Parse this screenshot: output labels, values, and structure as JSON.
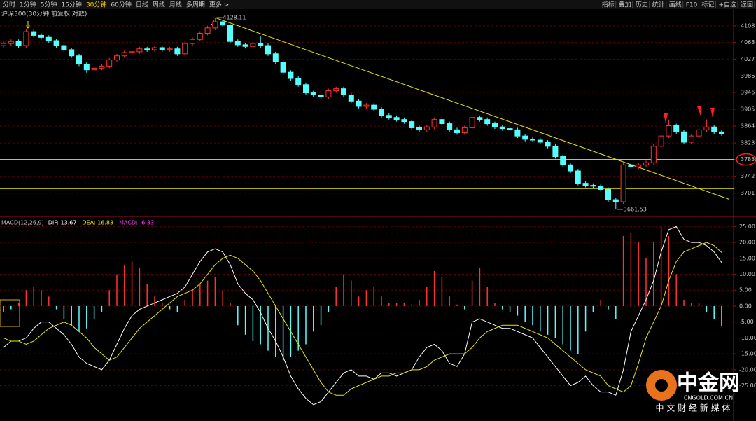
{
  "toolbar": {
    "periods": [
      "分时",
      "1分钟",
      "5分钟",
      "15分钟",
      "30分钟",
      "60分钟",
      "日线",
      "周线",
      "月线",
      "多周期",
      "更多 >"
    ],
    "active_period_index": 4,
    "tools": [
      "指标",
      "叠加",
      "历史",
      "统计",
      "画线",
      "F10",
      "标记",
      "+自选",
      "返回"
    ]
  },
  "watermark": {
    "brand": "中金网",
    "site": "CNGOLD.COM.CN",
    "slogan": "中 文 财 经 新 媒 体"
  },
  "chart_data": [
    {
      "type": "candlestick",
      "title": "沪深300(30分钟 前复权 对数)",
      "up_color": "#ff3232",
      "down_color": "#54ffff",
      "open": [
        4060,
        4065,
        4070,
        4060,
        4094,
        4085,
        4080,
        4072,
        4060,
        4050,
        4035,
        4015,
        4001,
        4005,
        4010,
        4025,
        4035,
        4043,
        4045,
        4052,
        4050,
        4055,
        4050,
        4052,
        4040,
        4065,
        4075,
        4090,
        4103,
        4118,
        4110,
        4070,
        4062,
        4058,
        4065,
        4060,
        4040,
        4020,
        3995,
        3980,
        3965,
        3945,
        3940,
        3935,
        3950,
        3955,
        3940,
        3925,
        3912,
        3915,
        3905,
        3890,
        3885,
        3880,
        3875,
        3860,
        3855,
        3862,
        3880,
        3870,
        3855,
        3848,
        3860,
        3885,
        3880,
        3870,
        3862,
        3858,
        3855,
        3840,
        3832,
        3830,
        3825,
        3815,
        3790,
        3770,
        3755,
        3725,
        3720,
        3718,
        3710,
        3685,
        3680,
        3770,
        3765,
        3770,
        3775,
        3815,
        3840,
        3865,
        3850,
        3825,
        3840,
        3855,
        3862,
        3850
      ],
      "close": [
        4065,
        4070,
        4060,
        4094,
        4085,
        4080,
        4072,
        4060,
        4050,
        4035,
        4015,
        4001,
        4005,
        4010,
        4025,
        4035,
        4043,
        4045,
        4052,
        4050,
        4055,
        4050,
        4052,
        4040,
        4065,
        4075,
        4090,
        4103,
        4118,
        4110,
        4070,
        4062,
        4058,
        4065,
        4060,
        4040,
        4020,
        3995,
        3980,
        3965,
        3945,
        3940,
        3935,
        3950,
        3955,
        3940,
        3925,
        3912,
        3915,
        3905,
        3890,
        3885,
        3880,
        3875,
        3860,
        3855,
        3862,
        3880,
        3870,
        3855,
        3848,
        3860,
        3885,
        3880,
        3870,
        3862,
        3858,
        3855,
        3840,
        3832,
        3830,
        3825,
        3815,
        3790,
        3770,
        3755,
        3725,
        3720,
        3718,
        3710,
        3685,
        3680,
        3770,
        3765,
        3770,
        3775,
        3815,
        3840,
        3865,
        3850,
        3825,
        3840,
        3855,
        3862,
        3850,
        3845
      ],
      "high": [
        4070,
        4075,
        4075,
        4100,
        4099,
        4090,
        4085,
        4077,
        4065,
        4055,
        4040,
        4020,
        4010,
        4015,
        4030,
        4040,
        4048,
        4050,
        4057,
        4057,
        4060,
        4060,
        4057,
        4057,
        4070,
        4080,
        4095,
        4108,
        4128.11,
        4123,
        4112,
        4075,
        4067,
        4070,
        4082,
        4065,
        4045,
        4025,
        4000,
        3985,
        3970,
        3950,
        3945,
        3955,
        3960,
        3960,
        3945,
        3930,
        3920,
        3920,
        3910,
        3895,
        3890,
        3885,
        3880,
        3865,
        3867,
        3885,
        3885,
        3875,
        3860,
        3865,
        3895,
        3890,
        3885,
        3875,
        3867,
        3863,
        3860,
        3845,
        3837,
        3835,
        3830,
        3820,
        3795,
        3775,
        3760,
        3730,
        3725,
        3723,
        3715,
        3690,
        3775,
        3775,
        3775,
        3780,
        3820,
        3845,
        3880,
        3870,
        3855,
        3845,
        3860,
        3880,
        3867,
        3855
      ],
      "low": [
        4055,
        4060,
        4055,
        4055,
        4080,
        4075,
        4067,
        4055,
        4045,
        4030,
        4010,
        3994,
        3996,
        4000,
        4005,
        4020,
        4030,
        4038,
        4040,
        4045,
        4045,
        4045,
        4045,
        4035,
        4035,
        4060,
        4070,
        4085,
        4098,
        4105,
        4065,
        4057,
        4053,
        4053,
        4055,
        4035,
        4015,
        3990,
        3975,
        3960,
        3940,
        3935,
        3930,
        3930,
        3945,
        3935,
        3920,
        3907,
        3907,
        3900,
        3885,
        3880,
        3875,
        3870,
        3855,
        3850,
        3850,
        3857,
        3865,
        3850,
        3843,
        3843,
        3855,
        3875,
        3865,
        3857,
        3853,
        3850,
        3835,
        3827,
        3825,
        3820,
        3810,
        3785,
        3765,
        3750,
        3720,
        3715,
        3713,
        3705,
        3680,
        3661.53,
        3675,
        3760,
        3760,
        3765,
        3770,
        3810,
        3835,
        3845,
        3820,
        3820,
        3835,
        3850,
        3845,
        3840
      ],
      "ylim": [
        3646,
        4147
      ],
      "yticks": [
        4108,
        4068,
        4027,
        3986,
        3946,
        3905,
        3864,
        3823,
        3783,
        3742,
        3701
      ],
      "highlight_tick": 3783,
      "levels": [
        3783,
        3712
      ],
      "trendline": {
        "indices": [
          28,
          96
        ],
        "values": [
          4128,
          3686
        ]
      },
      "grid": true
    },
    {
      "type": "macd",
      "title": "MACD(12,26,9)",
      "up_color": "#ff3232",
      "down_color": "#54ffff",
      "series": [
        {
          "name": "DIF: 13.67",
          "color": "#ffffff",
          "kind": "line",
          "values": [
            -13,
            -11,
            -11,
            -10,
            -7,
            -5,
            -5,
            -7,
            -9,
            -12,
            -16,
            -18,
            -19,
            -20,
            -17,
            -12,
            -7,
            -3,
            -1,
            0,
            1,
            2,
            3,
            4,
            6,
            10,
            14,
            17,
            18,
            17,
            13,
            7,
            4,
            2,
            -2,
            -7,
            -11,
            -16,
            -22,
            -26,
            -29,
            -31,
            -30,
            -27,
            -24,
            -21,
            -20,
            -22,
            -22,
            -23,
            -21,
            -21,
            -22,
            -21,
            -20,
            -16,
            -13,
            -12,
            -14,
            -18,
            -19,
            -15,
            -5,
            -4,
            -5,
            -6,
            -7,
            -7,
            -8,
            -9,
            -10,
            -13,
            -16,
            -19,
            -22,
            -25,
            -24,
            -22,
            -25,
            -27,
            -27,
            -28,
            -20,
            -8,
            -3,
            2,
            8,
            17,
            24,
            25,
            21,
            20,
            20,
            19,
            17,
            13.67
          ]
        },
        {
          "name": "DEA: 16.83",
          "color": "#e8e800",
          "kind": "line",
          "values": [
            -10,
            -11,
            -11,
            -12,
            -11,
            -9,
            -7,
            -6,
            -5,
            -6,
            -8,
            -10,
            -13,
            -15,
            -17,
            -16,
            -13,
            -10,
            -7,
            -5,
            -3,
            -1,
            1,
            3,
            4,
            5,
            7,
            10,
            13,
            15,
            16,
            15,
            13,
            11,
            8,
            4,
            0,
            -4,
            -8,
            -12,
            -16,
            -20,
            -24,
            -27,
            -28,
            -28,
            -26,
            -25,
            -24,
            -23,
            -22,
            -22,
            -21,
            -21,
            -20,
            -20,
            -19,
            -17,
            -16,
            -15,
            -15,
            -15,
            -13,
            -10,
            -8,
            -7,
            -6,
            -6,
            -6,
            -7,
            -8,
            -9,
            -10,
            -12,
            -14,
            -16,
            -18,
            -20,
            -21,
            -22,
            -25,
            -26,
            -27,
            -25,
            -18,
            -10,
            -5,
            0,
            8,
            14,
            17,
            18,
            19,
            20,
            19,
            16.83
          ]
        },
        {
          "name": "MACD: -6.33",
          "color": "#ff40ff",
          "kind": "bar",
          "values": [
            -2,
            -1,
            1,
            5,
            6,
            5,
            3,
            -1,
            -4,
            -6,
            -8,
            -7,
            -4,
            -2,
            5,
            10,
            13,
            14,
            12,
            7,
            3,
            1,
            -1,
            -2,
            2,
            5,
            7,
            8,
            9,
            5,
            1,
            -6,
            -9,
            -11,
            -12,
            -14,
            -16,
            -17,
            -16,
            -14,
            -12,
            -8,
            -6,
            -2,
            6,
            10,
            8,
            3,
            5,
            6,
            3,
            1,
            1,
            1,
            0.5,
            2,
            6,
            11,
            9,
            3,
            0.5,
            -1,
            8,
            12,
            6,
            1,
            -1,
            -2,
            -3,
            -5,
            -6,
            -8,
            -9,
            -10,
            -12,
            -14,
            -15,
            -8,
            -2,
            2,
            -1,
            -4,
            22,
            23,
            20,
            15,
            20,
            25,
            22,
            10,
            2,
            1,
            1,
            -2,
            -4,
            -6.33
          ]
        }
      ],
      "ylim": [
        -36.1,
        27.5
      ],
      "yticks": [
        {
          "value": 25,
          "label": "25.00"
        },
        {
          "value": 20,
          "label": "20.00"
        },
        {
          "value": 15,
          "label": "15.00"
        },
        {
          "value": 10,
          "label": "10.00"
        },
        {
          "value": 5,
          "label": "5.00"
        },
        {
          "value": 0,
          "label": "0.00"
        },
        {
          "value": -5,
          "label": "-5.00"
        },
        {
          "value": -10,
          "label": "-10.00"
        },
        {
          "value": -15,
          "label": "-15.00"
        },
        {
          "value": -20,
          "label": "-20.00"
        },
        {
          "value": -25,
          "label": "-25.00"
        }
      ],
      "grid": true
    }
  ]
}
